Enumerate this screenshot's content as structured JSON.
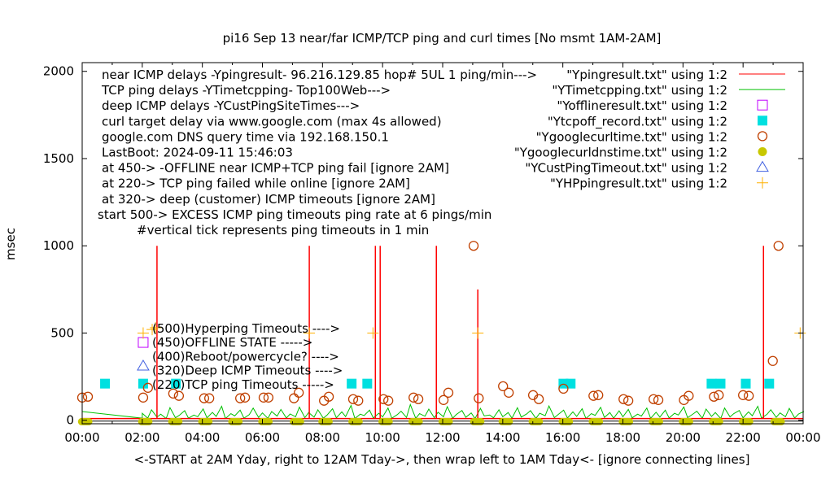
{
  "chart_data": {
    "type": "line",
    "title": "pi16 Sep 13  near/far ICMP/TCP ping and curl times [No msmt 1AM-2AM]",
    "xlabel": "<-START at 2AM Yday, right to 12AM Tday->, then wrap left to 1AM Tday<- [ignore connecting lines]",
    "ylabel": "msec",
    "xlim_hours": [
      0,
      24
    ],
    "ylim": [
      -20,
      2050
    ],
    "x_ticks": [
      "00:00",
      "02:00",
      "04:00",
      "06:00",
      "08:00",
      "10:00",
      "12:00",
      "14:00",
      "16:00",
      "18:00",
      "20:00",
      "22:00",
      "00:00"
    ],
    "y_ticks": [
      0,
      500,
      1000,
      1500,
      2000
    ],
    "annotations": [
      "near ICMP delays -Ypingresult- 96.216.129.85 hop# 5UL 1 ping/min--->",
      "TCP ping delays -YTimetcpping- Top100Web--->",
      "deep ICMP delays -YCustPingSiteTimes--->",
      "curl target delay via www.google.com (max 4s allowed)",
      "google.com DNS query time via 192.168.150.1",
      "LastBoot: 2024-09-11 15:46:03",
      "at 450-> -OFFLINE near ICMP+TCP ping fail [ignore 2AM]",
      "at 220-> TCP ping failed while online [ignore 2AM]",
      "at 320-> deep (customer) ICMP timeouts [ignore 2AM]",
      "start 500-> EXCESS ICMP ping timeouts ping rate at 6 pings/min",
      "#vertical tick represents ping timeouts in 1 min"
    ],
    "marker_legend": [
      "(500)Hyperping Timeouts ---->",
      "(450)OFFLINE STATE ----->",
      "(400)Reboot/powercycle? ---->",
      "(320)Deep ICMP Timeouts ---->",
      "(220)TCP ping Timeouts ----->"
    ],
    "legend_position": "top-right",
    "series": [
      {
        "name": "\"Ypingresult.txt\" using 1:2",
        "style": "line",
        "color": "#ff0000",
        "baseline": 10,
        "spikes": [
          [
            2.49,
            1000
          ],
          [
            7.56,
            1000
          ],
          [
            9.76,
            1000
          ],
          [
            9.92,
            1000
          ],
          [
            11.79,
            1000
          ],
          [
            13.17,
            750
          ],
          [
            22.68,
            1000
          ]
        ]
      },
      {
        "name": "\"YTimetcpping.txt\" using 1:2",
        "style": "line",
        "color": "#00c000",
        "values": [
          40,
          12,
          60,
          18,
          35,
          10,
          72,
          15,
          28,
          55,
          12,
          30,
          20,
          65,
          14,
          45,
          22,
          80,
          10,
          38,
          25,
          58,
          12,
          33,
          70,
          16,
          42,
          11,
          50,
          24,
          62,
          13,
          36,
          20,
          75,
          15,
          44,
          18,
          60,
          12,
          30,
          66,
          14,
          48,
          21,
          85,
          10,
          35,
          27,
          58,
          13,
          40,
          19,
          70,
          12,
          32,
          52,
          16,
          90,
          11,
          38,
          23,
          64,
          15,
          46,
          20,
          78,
          12,
          34,
          56,
          17,
          42,
          10,
          68,
          25,
          30,
          14,
          60,
          20,
          44,
          12,
          72,
          18,
          36,
          55,
          11,
          40,
          26,
          82,
          15,
          33,
          58,
          13,
          48,
          22,
          66,
          10,
          38,
          28,
          74,
          16,
          44,
          12,
          54,
          20,
          62,
          14,
          35,
          24,
          70,
          11,
          46,
          18,
          58,
          13,
          40,
          30,
          76,
          15,
          36,
          52,
          12,
          64,
          22,
          44,
          10,
          70,
          19,
          38,
          56,
          14,
          48,
          26,
          80,
          12,
          34,
          60,
          17,
          42,
          20,
          68,
          13,
          36,
          50
        ]
      },
      {
        "name": "\"Yofflineresult.txt\" using 1:2",
        "style": "open-square",
        "color": "#c000ff",
        "points": [
          [
            2.03,
            446
          ]
        ]
      },
      {
        "name": "\"Ytcpoff_record.txt\" using 1:2",
        "style": "filled-square",
        "color": "#00e0e0",
        "points": [
          [
            0.76,
            210
          ],
          [
            2.03,
            210
          ],
          [
            3.12,
            210
          ],
          [
            8.97,
            210
          ],
          [
            9.49,
            210
          ],
          [
            16.02,
            210
          ],
          [
            16.26,
            210
          ],
          [
            20.95,
            210
          ],
          [
            21.25,
            210
          ],
          [
            22.09,
            210
          ],
          [
            22.87,
            210
          ]
        ]
      },
      {
        "name": "\"Ygooglecurltime.txt\" using 1:2",
        "style": "open-circle",
        "color": "#c04000",
        "points": [
          [
            0.0,
            130
          ],
          [
            0.19,
            135
          ],
          [
            2.03,
            130
          ],
          [
            2.19,
            186
          ],
          [
            3.03,
            153
          ],
          [
            3.22,
            140
          ],
          [
            4.06,
            126
          ],
          [
            4.23,
            126
          ],
          [
            5.26,
            126
          ],
          [
            5.42,
            130
          ],
          [
            6.04,
            130
          ],
          [
            6.2,
            130
          ],
          [
            7.05,
            126
          ],
          [
            7.21,
            158
          ],
          [
            8.05,
            112
          ],
          [
            8.21,
            135
          ],
          [
            9.02,
            121
          ],
          [
            9.19,
            112
          ],
          [
            10.03,
            121
          ],
          [
            10.19,
            112
          ],
          [
            11.03,
            130
          ],
          [
            11.19,
            121
          ],
          [
            12.03,
            116
          ],
          [
            12.19,
            158
          ],
          [
            13.03,
            1000
          ],
          [
            13.2,
            126
          ],
          [
            14.01,
            195
          ],
          [
            14.2,
            158
          ],
          [
            15.01,
            144
          ],
          [
            15.2,
            121
          ],
          [
            16.02,
            181
          ],
          [
            17.02,
            140
          ],
          [
            17.18,
            144
          ],
          [
            18.02,
            121
          ],
          [
            18.18,
            112
          ],
          [
            19.02,
            121
          ],
          [
            19.18,
            116
          ],
          [
            20.03,
            116
          ],
          [
            20.19,
            140
          ],
          [
            21.03,
            135
          ],
          [
            21.19,
            144
          ],
          [
            22.0,
            144
          ],
          [
            22.19,
            140
          ],
          [
            22.99,
            340
          ],
          [
            23.18,
            1000
          ]
        ]
      },
      {
        "name": "\"Ygooglecurldnstime.txt\" using 1:2",
        "style": "filled-circle",
        "color": "#c8c800",
        "clusters_hours": [
          0.1,
          2.1,
          3.1,
          4.1,
          5.1,
          6.1,
          7.15,
          8.1,
          9.1,
          10.1,
          11.1,
          12.1,
          13.15,
          14.1,
          15.1,
          16.1,
          17.1,
          18.1,
          19.1,
          20.1,
          21.1,
          22.1,
          23.15
        ],
        "value": -8
      },
      {
        "name": "\"YCustPingTimeout.txt\" using 1:2",
        "style": "open-triangle",
        "color": "#4060e0",
        "points": [
          [
            2.03,
            311
          ]
        ]
      },
      {
        "name": "\"YHPpingresult.txt\" using 1:2",
        "style": "plus",
        "color": "#ffb000",
        "points": [
          [
            2.03,
            500
          ],
          [
            2.33,
            520
          ],
          [
            2.44,
            530
          ],
          [
            7.56,
            500
          ],
          [
            9.68,
            500
          ],
          [
            13.17,
            500
          ],
          [
            23.9,
            500
          ]
        ]
      }
    ]
  }
}
